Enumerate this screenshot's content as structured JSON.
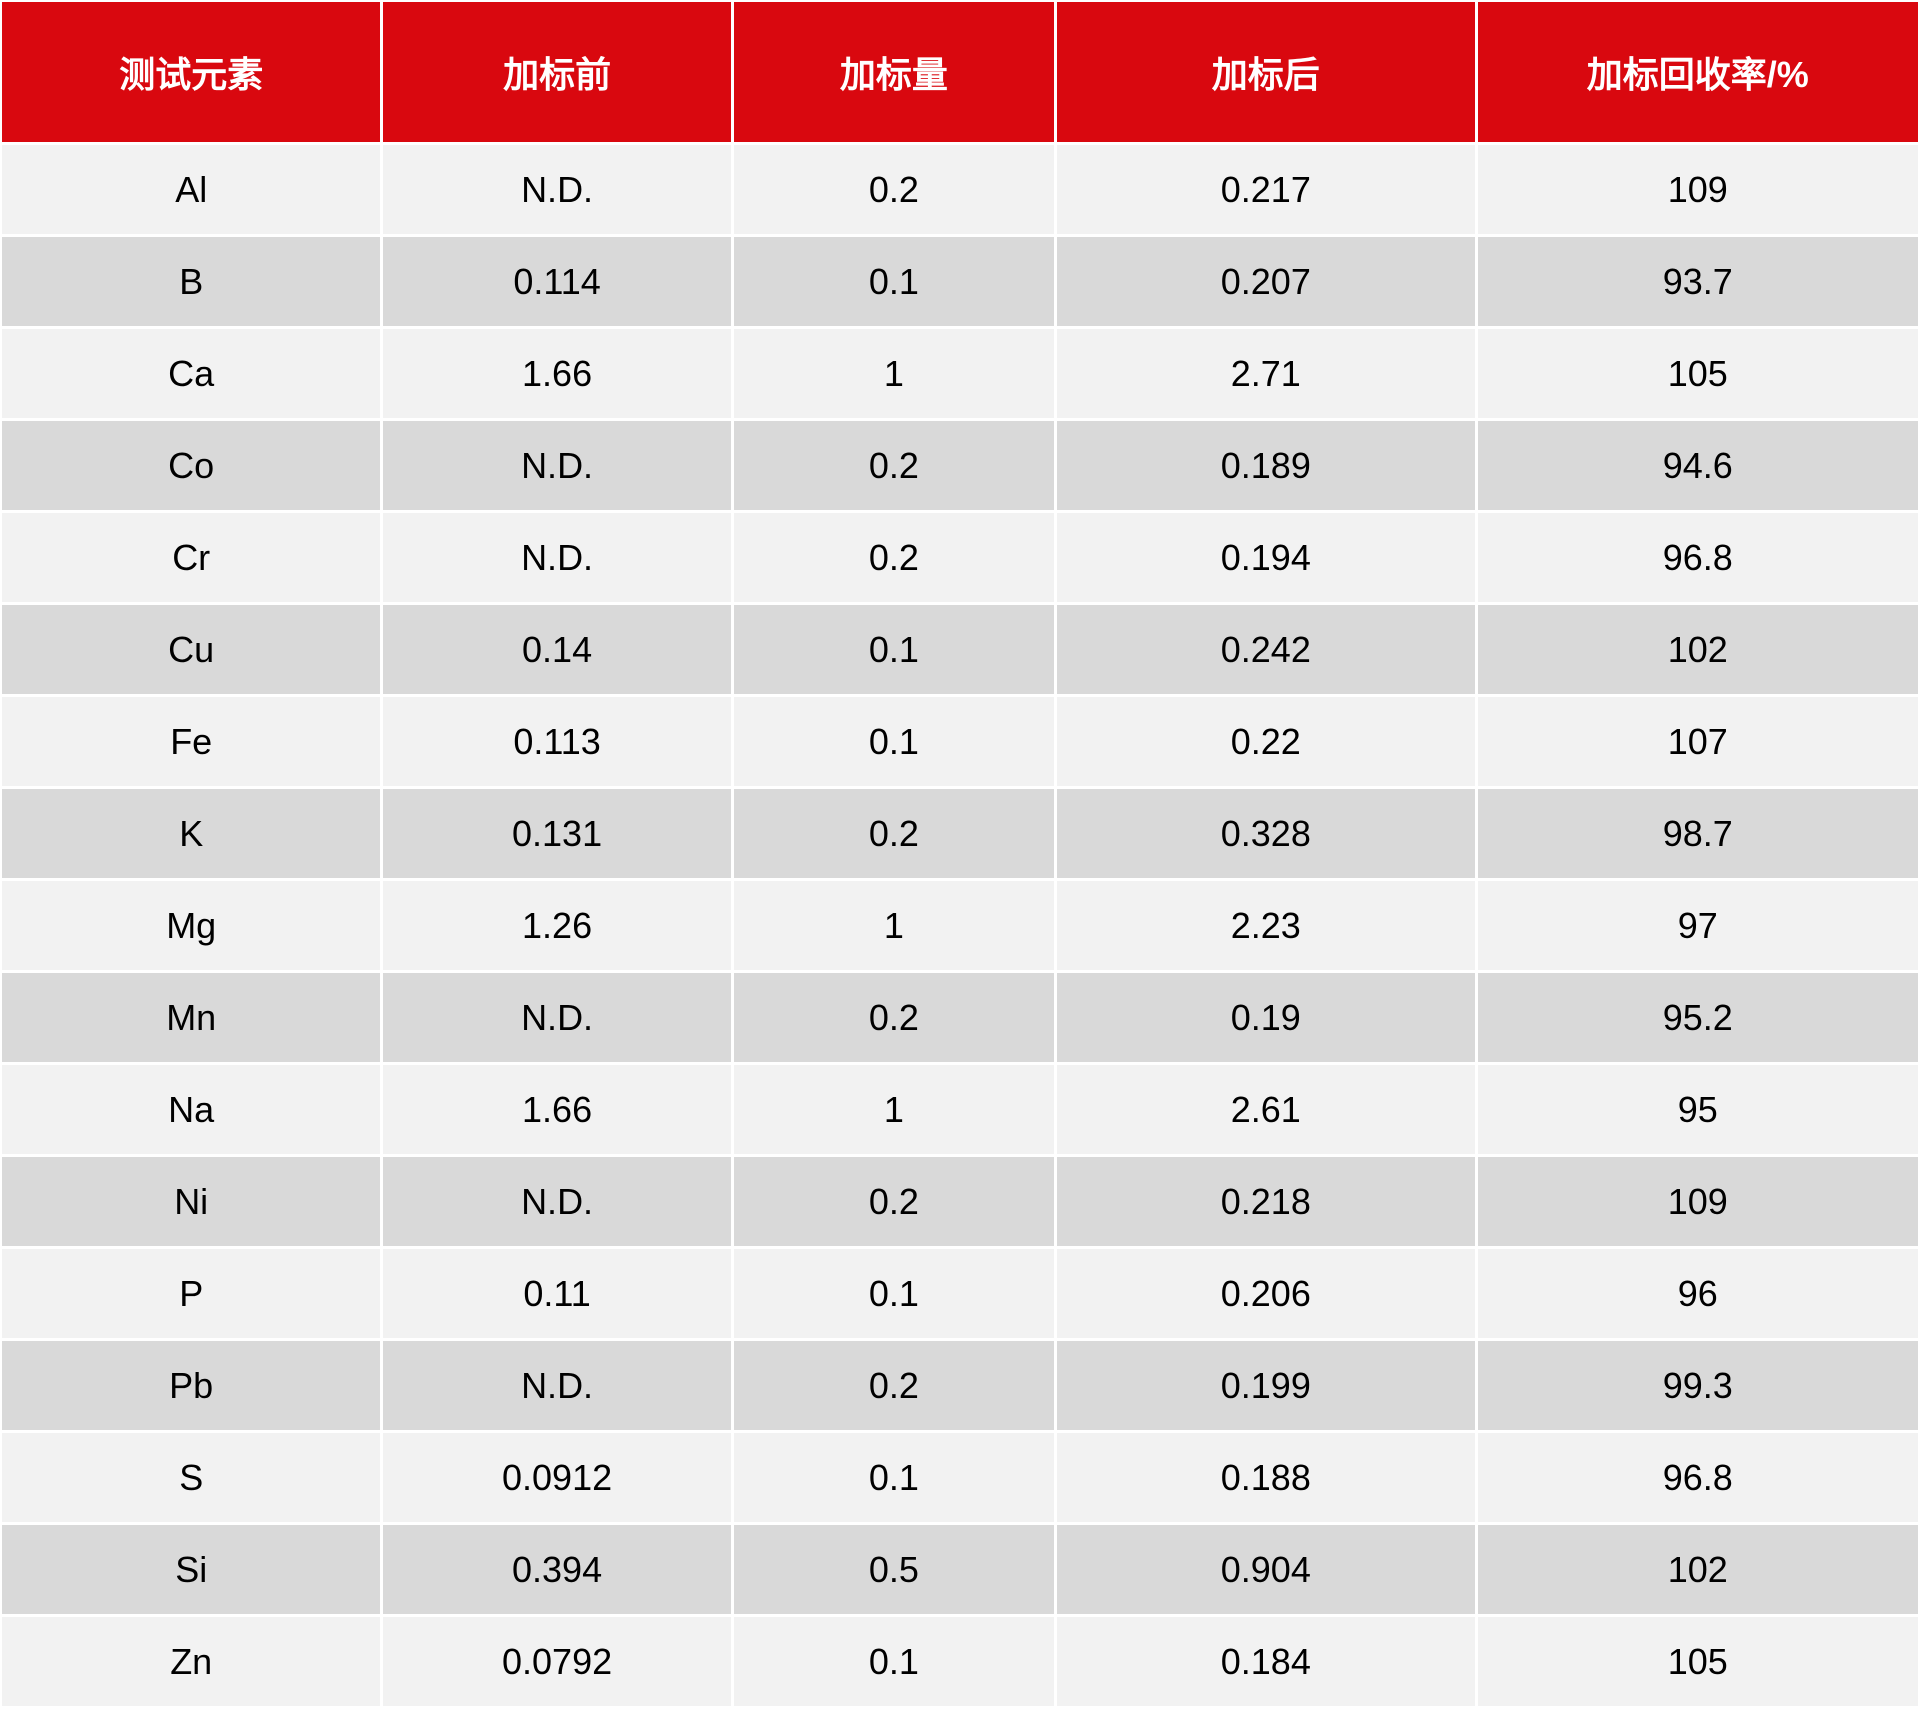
{
  "colors": {
    "header": "#d9080f",
    "row_light": "#f2f2f2",
    "row_dark": "#d9d9d9"
  },
  "headers": [
    "测试元素",
    "加标前",
    "加标量",
    "加标后",
    "加标回收率/%"
  ],
  "rows": [
    [
      "Al",
      "N.D.",
      "0.2",
      "0.217",
      "109"
    ],
    [
      "B",
      "0.114",
      "0.1",
      "0.207",
      "93.7"
    ],
    [
      "Ca",
      "1.66",
      "1",
      "2.71",
      "105"
    ],
    [
      "Co",
      "N.D.",
      "0.2",
      "0.189",
      "94.6"
    ],
    [
      "Cr",
      "N.D.",
      "0.2",
      "0.194",
      "96.8"
    ],
    [
      "Cu",
      "0.14",
      "0.1",
      "0.242",
      "102"
    ],
    [
      "Fe",
      "0.113",
      "0.1",
      "0.22",
      "107"
    ],
    [
      "K",
      "0.131",
      "0.2",
      "0.328",
      "98.7"
    ],
    [
      "Mg",
      "1.26",
      "1",
      "2.23",
      "97"
    ],
    [
      "Mn",
      "N.D.",
      "0.2",
      "0.19",
      "95.2"
    ],
    [
      "Na",
      "1.66",
      "1",
      "2.61",
      "95"
    ],
    [
      "Ni",
      "N.D.",
      "0.2",
      "0.218",
      "109"
    ],
    [
      "P",
      "0.11",
      "0.1",
      "0.206",
      "96"
    ],
    [
      "Pb",
      "N.D.",
      "0.2",
      "0.199",
      "99.3"
    ],
    [
      "S",
      "0.0912",
      "0.1",
      "0.188",
      "96.8"
    ],
    [
      "Si",
      "0.394",
      "0.5",
      "0.904",
      "102"
    ],
    [
      "Zn",
      "0.0792",
      "0.1",
      "0.184",
      "105"
    ]
  ]
}
